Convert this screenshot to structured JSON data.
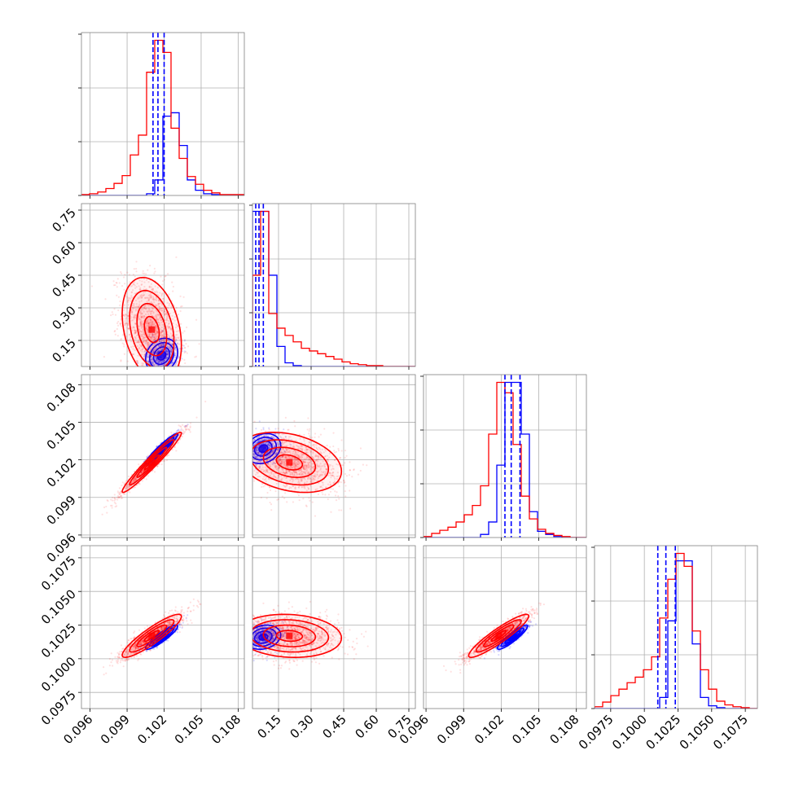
{
  "colors": {
    "series_a": "#0000ff",
    "series_b": "#ff0000",
    "grid": "#b0b0b0",
    "frame": "#808080"
  },
  "chart_data": {
    "type": "corner",
    "parameters": [
      {
        "range": [
          0.0953,
          0.1085
        ],
        "ticks": [
          0.096,
          0.099,
          0.102,
          0.105,
          0.108
        ],
        "tick_labels": [
          "0.096",
          "0.099",
          "0.102",
          "0.105",
          "0.108"
        ]
      },
      {
        "range": [
          0.03,
          0.78
        ],
        "ticks": [
          0.15,
          0.3,
          0.45,
          0.6,
          0.75
        ],
        "tick_labels": [
          "0.15",
          "0.30",
          "0.45",
          "0.60",
          "0.75"
        ]
      },
      {
        "range": [
          0.0958,
          0.1088
        ],
        "ticks": [
          0.096,
          0.099,
          0.102,
          0.105,
          0.108
        ],
        "tick_labels": [
          "0.096",
          "0.099",
          "0.102",
          "0.105",
          "0.108"
        ]
      },
      {
        "range": [
          0.0963,
          0.1084
        ],
        "ticks": [
          0.0975,
          0.1,
          0.1025,
          0.105,
          0.1075
        ],
        "tick_labels": [
          "0.0975",
          "0.1000",
          "0.1025",
          "0.1050",
          "0.1075"
        ]
      }
    ],
    "quantiles": {
      "blue": [
        [
          0.1011,
          0.1015,
          0.102
        ],
        [
          0.045,
          0.06,
          0.08
        ],
        [
          0.1023,
          0.1028,
          0.1035
        ],
        [
          0.101,
          0.1016,
          0.1023
        ]
      ]
    },
    "histograms": [
      {
        "edges_start": 0.0953,
        "bin_width": 0.00066,
        "blue": [
          0,
          0,
          0,
          0,
          0,
          0,
          0,
          0,
          2,
          18,
          92,
          96,
          58,
          18,
          6,
          2,
          1,
          0,
          0,
          0
        ],
        "red": [
          1,
          2,
          4,
          8,
          14,
          23,
          47,
          70,
          143,
          180,
          166,
          78,
          43,
          22,
          13,
          6,
          3,
          1,
          1,
          1
        ]
      },
      {
        "edges_start": 0.03,
        "bin_width": 0.0375,
        "blue": [
          170,
          170,
          100,
          22,
          4,
          1,
          0,
          0,
          0,
          0,
          0,
          0,
          0,
          0,
          0,
          0,
          0,
          0,
          0,
          0
        ],
        "red": [
          100,
          170,
          58,
          42,
          34,
          27,
          20,
          17,
          14,
          11,
          8,
          5,
          3,
          2,
          1,
          1,
          0,
          0,
          0,
          0
        ]
      },
      {
        "edges_start": 0.0958,
        "bin_width": 0.00065,
        "blue": [
          0,
          0,
          0,
          0,
          0,
          0,
          0,
          3,
          15,
          70,
          150,
          150,
          100,
          25,
          6,
          3,
          1,
          0,
          0,
          0
        ],
        "red": [
          1,
          4,
          7,
          10,
          15,
          22,
          31,
          50,
          100,
          150,
          140,
          90,
          40,
          18,
          8,
          4,
          2,
          1,
          0,
          0
        ]
      },
      {
        "edges_start": 0.0963,
        "bin_width": 0.000605,
        "blue": [
          0,
          0,
          0,
          0,
          0,
          0,
          0,
          0,
          12,
          95,
          160,
          160,
          70,
          12,
          3,
          1,
          0,
          0,
          0,
          0
        ],
        "red": [
          2,
          7,
          14,
          21,
          28,
          34,
          42,
          56,
          98,
          140,
          168,
          154,
          84,
          42,
          21,
          8,
          4,
          2,
          1,
          0
        ]
      }
    ],
    "joint": {
      "blue": {
        "mean": [
          0.1018,
          0.08,
          0.1029,
          0.1016
        ],
        "sd": [
          0.00065,
          0.04,
          0.0006,
          0.00045
        ],
        "corr": [
          [
            1,
            0.2,
            0.95,
            0.9
          ],
          [
            0.2,
            1,
            0.2,
            0.2
          ],
          [
            0.95,
            0.2,
            1,
            0.9
          ],
          [
            0.9,
            0.2,
            0.9,
            1
          ]
        ]
      },
      "red": {
        "mean": [
          0.101,
          0.2,
          0.1018,
          0.1017
        ],
        "sd": [
          0.0012,
          0.12,
          0.0012,
          0.0008
        ],
        "corr": [
          [
            1,
            -0.3,
            0.97,
            0.9
          ],
          [
            -0.3,
            1,
            -0.3,
            -0.1
          ],
          [
            0.97,
            -0.3,
            1,
            0.92
          ],
          [
            0.9,
            -0.1,
            0.92,
            1
          ]
        ]
      }
    }
  }
}
